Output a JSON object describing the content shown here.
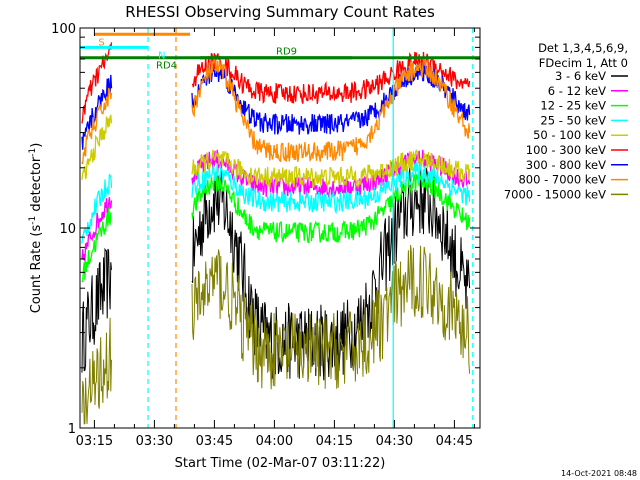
{
  "chart_data": {
    "type": "line",
    "title": "RHESSI Observing Summary Count Rates",
    "xlabel": "Start Time (02-Mar-07 03:11:22)",
    "ylabel_main": "Count Rate (s",
    "ylabel_sup1": "-1",
    "ylabel_mid": " detector",
    "ylabel_sup2": "-1",
    "ylabel_end": ")",
    "yscale": "log",
    "ylim": [
      1,
      100
    ],
    "xlim_minutes": [
      0,
      100
    ],
    "x_ticks": [
      {
        "label": "03:15",
        "minute": 3.6
      },
      {
        "label": "03:30",
        "minute": 18.6
      },
      {
        "label": "03:45",
        "minute": 33.6
      },
      {
        "label": "04:00",
        "minute": 48.6
      },
      {
        "label": "04:15",
        "minute": 63.6
      },
      {
        "label": "04:30",
        "minute": 78.6
      },
      {
        "label": "04:45",
        "minute": 93.6
      }
    ],
    "y_ticks": [
      {
        "label": "1",
        "value": 1
      },
      {
        "label": "10",
        "value": 10
      },
      {
        "label": "100",
        "value": 100
      }
    ],
    "legend_header": [
      "Det 1,3,4,5,6,9,",
      "FDecim 1, Att 0"
    ],
    "legend_position": "right",
    "series": [
      {
        "name": "3 - 6 keV",
        "color": "#000000",
        "base": 3.4,
        "peak": 14,
        "bottom": 2.7
      },
      {
        "name": "6 - 12 keV",
        "color": "#ff00ff",
        "base": 8.5,
        "peak": 22,
        "bottom": 16
      },
      {
        "name": "12 - 25 keV",
        "color": "#00ff00",
        "base": 7,
        "peak": 17,
        "bottom": 9.5
      },
      {
        "name": "25 - 50 keV",
        "color": "#00ffff",
        "base": 10.5,
        "peak": 19,
        "bottom": 13.5
      },
      {
        "name": "50 - 100 keV",
        "color": "#cccc00",
        "base": 21,
        "peak": 22,
        "bottom": 18
      },
      {
        "name": "100 - 300 keV",
        "color": "#ff0000",
        "base": 46,
        "peak": 68,
        "bottom": 47
      },
      {
        "name": "300 - 800 keV",
        "color": "#0000ff",
        "base": 32,
        "peak": 60,
        "bottom": 33
      },
      {
        "name": "800 - 7000 keV",
        "color": "#ff8800",
        "base": 28,
        "peak": 63,
        "bottom": 24
      },
      {
        "name": "7000 - 15000 keV",
        "color": "#808000",
        "base": 1.4,
        "peak": 5.5,
        "bottom": 2.4
      }
    ],
    "annotations": [
      {
        "label": "S",
        "color": "#ff8800",
        "x_start": 3.6,
        "x_end": 27.5,
        "y": 93
      },
      {
        "label": "N",
        "color": "#00ffff",
        "x_start": 0,
        "x_end": 17,
        "y": 80
      },
      {
        "label": "RD4",
        "color": "#008000",
        "x_start": 0,
        "x_end": 68,
        "y": 71
      },
      {
        "label": "RD9",
        "color": "#008000",
        "x_start": 30,
        "x_end": 100,
        "y": 71
      }
    ],
    "vertical_markers": [
      {
        "minute": 17,
        "color": "#00ffff",
        "style": "dashed"
      },
      {
        "minute": 24,
        "color": "#ff8800",
        "style": "dashed"
      },
      {
        "minute": 78.3,
        "color": "#00ffff",
        "style": "solid"
      },
      {
        "minute": 98.2,
        "color": "#00ffff",
        "style": "dashed"
      }
    ]
  },
  "footer": {
    "timestamp": "14-Oct-2021 08:48"
  }
}
